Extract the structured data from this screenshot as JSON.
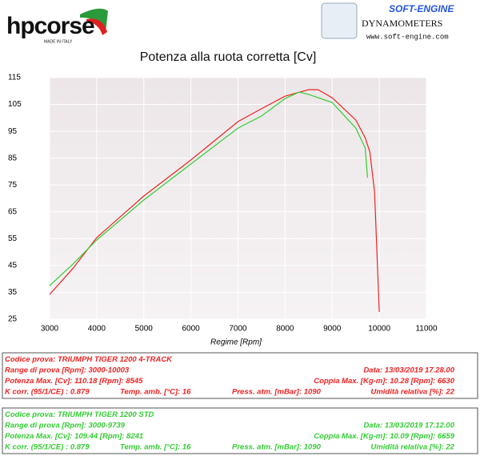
{
  "header": {
    "brand": "hpcorse",
    "brand_sub": "MADE IN ITALY",
    "dyno": "SOFT-ENGINE",
    "dyno_sub": "DYNAMOMETERS",
    "url": "www.soft-engine.com"
  },
  "chart_data": {
    "type": "line",
    "title": "Potenza alla ruota corretta [Cv]",
    "x_label": "Regime [Rpm]",
    "xlim": [
      3000,
      11000
    ],
    "xticks": [
      3000,
      4000,
      5000,
      6000,
      7000,
      8000,
      9000,
      10000,
      11000
    ],
    "ylim": [
      25,
      115
    ],
    "yticks": [
      25,
      35,
      45,
      55,
      65,
      75,
      85,
      95,
      105,
      115
    ],
    "grid": true,
    "series": [
      {
        "name": "TRIUMPH TIGER 1200 4-TRACK",
        "color": "#ee2222",
        "x": [
          3000,
          3500,
          4000,
          5000,
          6000,
          7000,
          7500,
          8000,
          8500,
          8700,
          9000,
          9500,
          9700,
          9800,
          9900,
          10000
        ],
        "values": [
          34.2,
          44,
          55.4,
          70.9,
          84.3,
          98.6,
          103.4,
          108.1,
          110.5,
          110.5,
          107.5,
          99.2,
          92.6,
          87.3,
          72.4,
          27.7
        ]
      },
      {
        "name": "TRIUMPH TIGER 1200 STD",
        "color": "#33cc33",
        "x": [
          3000,
          3500,
          4000,
          5000,
          6000,
          7000,
          7500,
          8000,
          8300,
          8500,
          9000,
          9500,
          9700,
          9750
        ],
        "values": [
          37.5,
          45.6,
          54.5,
          69.4,
          82.8,
          96.2,
          100.7,
          107.2,
          109.6,
          108.7,
          105.7,
          96.2,
          88.8,
          77.7
        ]
      }
    ]
  },
  "tests": [
    {
      "label": "Codice prova:",
      "rows": [
        [
          "Range di prova [Rpm]: 3000-10003",
          "Data: 13/03/2019   17.28.00"
        ],
        [
          "Potenza Max. [Cv]: 110.18  [Rpm]: 8545",
          "Coppia Max. [Kg-m]: 10.28  [Rpm]: 6630"
        ],
        [
          "K corr. (95/1/CE) : 0.879",
          "Temp. amb. [°C]: 16",
          "Press. atm. [mBar]: 1090",
          "Umidità relativa [%]: 22"
        ]
      ]
    },
    {
      "label": "Codice prova:",
      "rows": [
        [
          "Range di prova [Rpm]: 3000-9739",
          "Data: 13/03/2019   17.12.00"
        ],
        [
          "Potenza Max. [Cv]: 109.44  [Rpm]: 8241",
          "Coppia Max. [Kg-m]: 10.09  [Rpm]: 6659"
        ],
        [
          "K corr. (95/1/CE) : 0.879",
          "Temp. amb. [°C]: 16",
          "Press. atm. [mBar]: 1090",
          "Umidità relativa [%]: 22"
        ]
      ]
    }
  ]
}
